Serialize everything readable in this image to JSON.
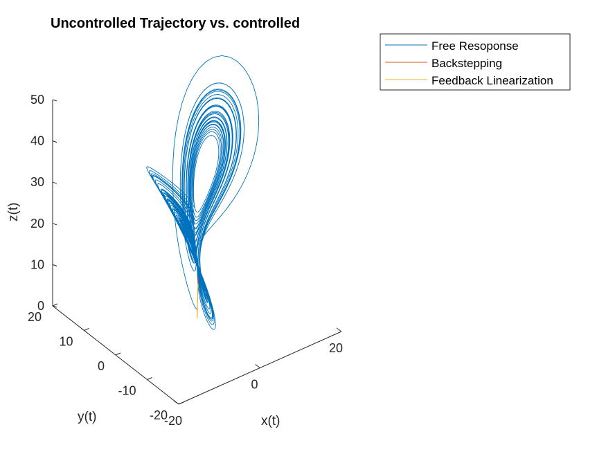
{
  "chart_data": {
    "type": "line",
    "title": "Uncontrolled Trajectory vs. controlled",
    "xlabel": "x(t)",
    "ylabel": "y(t)",
    "zlabel": "z(t)",
    "xlim": [
      -20,
      20
    ],
    "ylim": [
      -20,
      20
    ],
    "zlim": [
      0,
      50
    ],
    "x_ticks": [
      -20,
      0,
      20
    ],
    "y_ticks": [
      -20,
      -10,
      0,
      10,
      20
    ],
    "z_ticks": [
      0,
      10,
      20,
      30,
      40,
      50
    ],
    "x_tick_labels": [
      "-20",
      "0",
      "20"
    ],
    "y_tick_labels": [
      "-20",
      "-10",
      "0",
      "10",
      "20"
    ],
    "z_tick_labels": [
      "0",
      "10",
      "20",
      "30",
      "40",
      "50"
    ],
    "grid": false,
    "legend_position": "top-right",
    "series": [
      {
        "name": "Free Resoponse",
        "color": "#0072BD",
        "style": "Lorenz attractor trajectory (sigma=10, rho=28, beta=8/3)",
        "initial_state": [
          1,
          1,
          1
        ]
      },
      {
        "name": "Backstepping",
        "color": "#D95319",
        "points": [
          [
            0.6,
            0.4,
            9.5
          ],
          [
            0.3,
            0.2,
            5.0
          ],
          [
            0.1,
            0.1,
            2.0
          ],
          [
            0.0,
            0.0,
            0.5
          ],
          [
            0.0,
            0.0,
            0.0
          ]
        ]
      },
      {
        "name": "Feedback Linearization",
        "color": "#EDB120",
        "points": [
          [
            0.5,
            0.3,
            8.0
          ],
          [
            0.2,
            0.1,
            4.0
          ],
          [
            0.05,
            0.02,
            1.5
          ],
          [
            0.0,
            0.0,
            0.0
          ]
        ]
      }
    ]
  }
}
